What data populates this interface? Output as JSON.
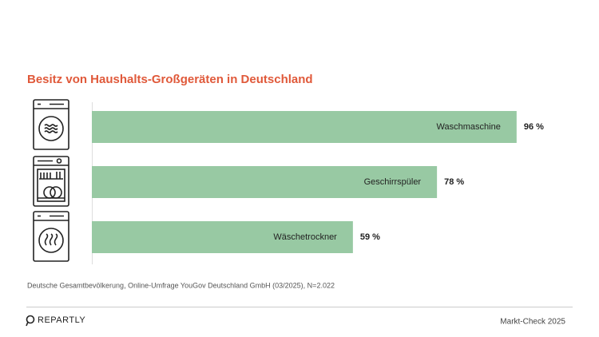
{
  "chart_data": {
    "type": "bar",
    "orientation": "horizontal",
    "title": "Besitz von Haushalts-Großgeräten in Deutschland",
    "categories": [
      "Waschmaschine",
      "Geschirrspüler",
      "Wäschetrockner"
    ],
    "values": [
      96,
      78,
      59
    ],
    "value_labels": [
      "96 %",
      "78 %",
      "59 %"
    ],
    "color": "#98c9a3",
    "source": "Deutsche Gesamtbevölkerung, Online-Umfrage YouGov Deutschland GmbH (03/2025), N=2.022"
  },
  "footer": {
    "brand": "REPARTLY",
    "label": "Markt-Check 2025"
  }
}
